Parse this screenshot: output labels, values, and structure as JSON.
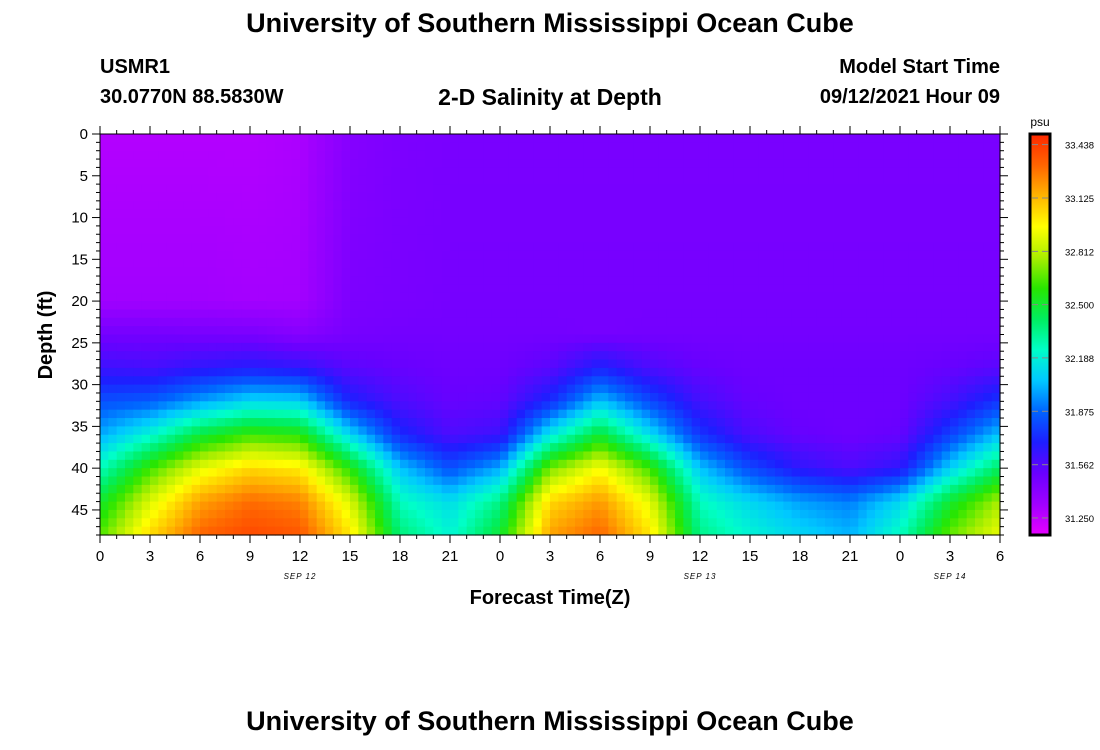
{
  "header": {
    "title": "University of Southern Mississippi Ocean Cube",
    "station_id": "USMR1",
    "coordinates": "30.0770N  88.5830W",
    "plot_title": "2-D Salinity at Depth",
    "start_time_label": "Model Start Time",
    "start_time_value": "09/12/2021 Hour 09"
  },
  "footer": {
    "title": "University of Southern Mississippi Ocean Cube"
  },
  "chart_data": {
    "type": "heatmap",
    "title": "2-D Salinity at Depth",
    "xlabel": "Forecast Time(Z)",
    "ylabel": "Depth (ft)",
    "x_hours_range": [
      0,
      54
    ],
    "x_tick_hours": [
      0,
      3,
      6,
      9,
      12,
      15,
      18,
      21,
      24,
      27,
      30,
      33,
      36,
      39,
      42,
      45,
      48,
      51,
      54
    ],
    "x_tick_labels": [
      "0",
      "3",
      "6",
      "9",
      "12",
      "15",
      "18",
      "21",
      "0",
      "3",
      "6",
      "9",
      "12",
      "15",
      "18",
      "21",
      "0",
      "3",
      "6"
    ],
    "date_labels": [
      {
        "hour": 12,
        "text": "SEP 12"
      },
      {
        "hour": 36,
        "text": "SEP 13"
      },
      {
        "hour": 51,
        "text": "SEP 14"
      }
    ],
    "ylim": [
      0,
      48
    ],
    "y_ticks": [
      0,
      5,
      10,
      15,
      20,
      25,
      30,
      35,
      40,
      45
    ],
    "colorbar": {
      "unit": "psu",
      "range": [
        31.15,
        33.5
      ],
      "ticks": [
        31.25,
        31.562,
        31.875,
        32.188,
        32.5,
        32.812,
        33.125,
        33.438
      ],
      "tick_labels": [
        "31.250",
        "31.562",
        "31.875",
        "32.188",
        "32.500",
        "32.812",
        "33.125",
        "33.438"
      ]
    },
    "colormap": [
      "#e600ff",
      "#a000ff",
      "#6a00ff",
      "#1e1eff",
      "#0064ff",
      "#00c8ff",
      "#00ffc8",
      "#00ee60",
      "#28e600",
      "#aaee00",
      "#ffff00",
      "#ffb400",
      "#ff6400",
      "#ff2800"
    ],
    "column_hours": [
      0,
      3,
      6,
      9,
      12,
      15,
      18,
      21,
      24,
      27,
      30,
      33,
      36,
      39,
      42,
      45,
      48,
      51,
      54
    ],
    "row_depths": [
      0,
      20,
      24,
      28,
      32,
      36,
      40,
      44,
      48
    ],
    "salinity": [
      [
        31.28,
        31.28,
        31.28,
        31.28,
        31.3,
        31.42,
        31.45,
        31.46,
        31.46,
        31.46,
        31.46,
        31.46,
        31.46,
        31.46,
        31.46,
        31.46,
        31.46,
        31.46,
        31.46
      ],
      [
        31.33,
        31.33,
        31.33,
        31.32,
        31.32,
        31.45,
        31.46,
        31.47,
        31.47,
        31.47,
        31.47,
        31.47,
        31.47,
        31.47,
        31.47,
        31.47,
        31.47,
        31.47,
        31.47
      ],
      [
        31.48,
        31.48,
        31.47,
        31.46,
        31.42,
        31.47,
        31.48,
        31.48,
        31.48,
        31.48,
        31.47,
        31.48,
        31.48,
        31.48,
        31.48,
        31.48,
        31.48,
        31.48,
        31.48
      ],
      [
        31.62,
        31.6,
        31.65,
        31.68,
        31.65,
        31.55,
        31.52,
        31.5,
        31.5,
        31.55,
        31.7,
        31.58,
        31.52,
        31.5,
        31.5,
        31.5,
        31.5,
        31.52,
        31.55
      ],
      [
        31.82,
        31.85,
        31.98,
        32.1,
        32.08,
        31.7,
        31.58,
        31.52,
        31.53,
        31.72,
        32.05,
        31.8,
        31.6,
        31.52,
        31.5,
        31.5,
        31.5,
        31.6,
        31.75
      ],
      [
        32.0,
        32.2,
        32.48,
        32.62,
        32.58,
        32.1,
        31.72,
        31.58,
        31.62,
        32.15,
        32.5,
        32.12,
        31.75,
        31.58,
        31.52,
        31.5,
        31.52,
        31.78,
        32.05
      ],
      [
        32.25,
        32.62,
        32.9,
        33.05,
        33.0,
        32.58,
        32.05,
        31.82,
        32.0,
        32.7,
        32.95,
        32.62,
        32.05,
        31.8,
        31.65,
        31.58,
        31.65,
        32.08,
        32.42
      ],
      [
        32.5,
        32.88,
        33.18,
        33.3,
        33.25,
        32.88,
        32.25,
        32.12,
        32.35,
        33.05,
        33.2,
        32.9,
        32.25,
        32.1,
        31.98,
        31.92,
        32.1,
        32.5,
        32.78
      ],
      [
        32.65,
        33.05,
        33.32,
        33.4,
        33.36,
        33.02,
        32.38,
        32.2,
        32.5,
        33.18,
        33.32,
        33.02,
        32.35,
        32.2,
        32.1,
        32.02,
        32.25,
        32.68,
        32.92
      ]
    ]
  }
}
